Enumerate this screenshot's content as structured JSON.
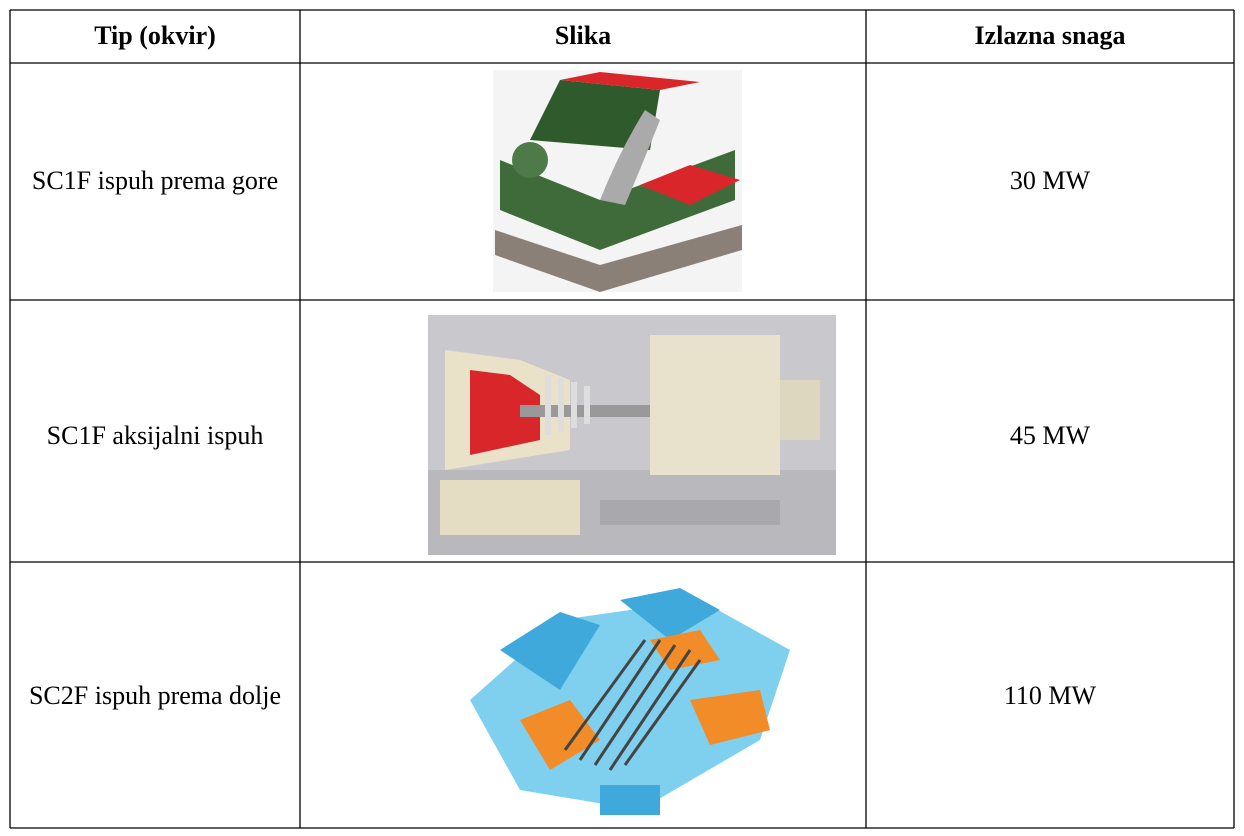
{
  "table": {
    "header": [
      "Tip (okvir)",
      "Slika",
      "Izlazna snaga"
    ],
    "rows": [
      [
        "SC1F ispuh prema gore",
        "30 MW"
      ],
      [
        "SC1F aksijalni ispuh",
        "45 MW"
      ],
      [
        "SC2F ispuh prema dolje",
        "110 MW"
      ]
    ]
  }
}
